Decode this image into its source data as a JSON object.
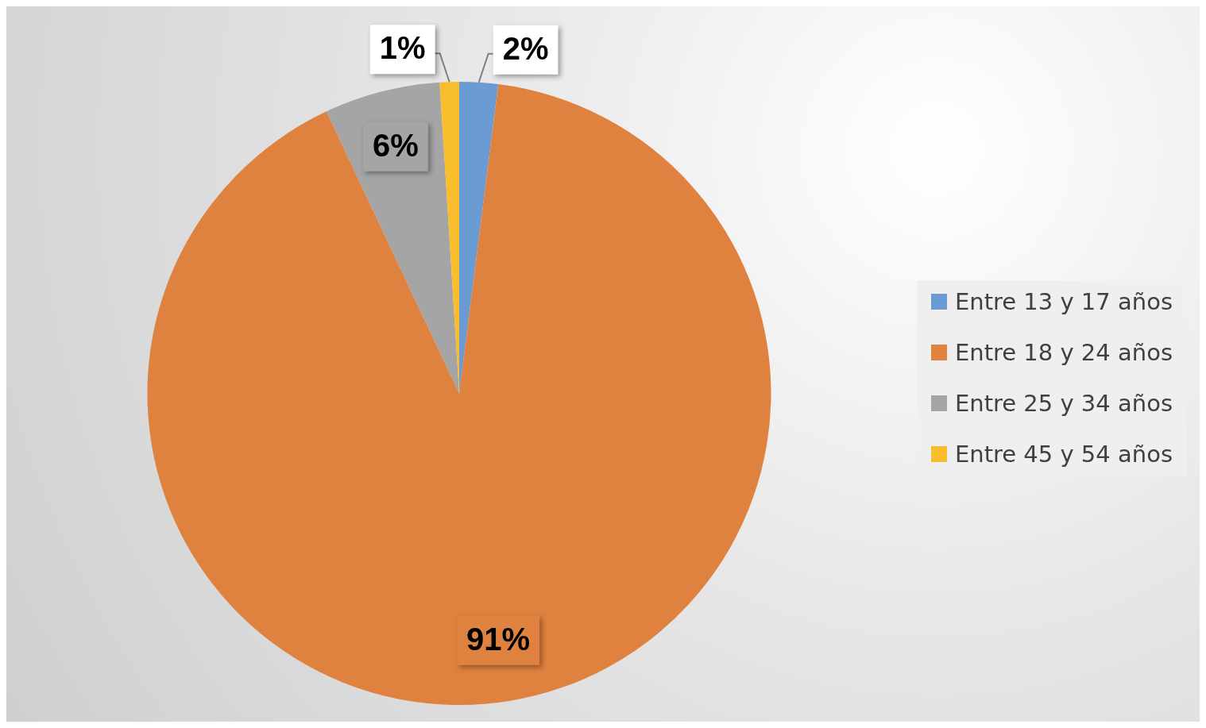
{
  "chart_data": {
    "type": "pie",
    "categories": [
      "Entre 13 y 17 años",
      "Entre 18 y 24 años",
      "Entre 25 y 34 años",
      "Entre 45 y 54 años"
    ],
    "values": [
      2,
      91,
      6,
      1
    ],
    "colors": [
      "#6a9bd2",
      "#e0823f",
      "#a5a5a5",
      "#f9be2d"
    ],
    "value_labels": [
      "2%",
      "91%",
      "6%",
      "1%"
    ],
    "legend": "right"
  }
}
